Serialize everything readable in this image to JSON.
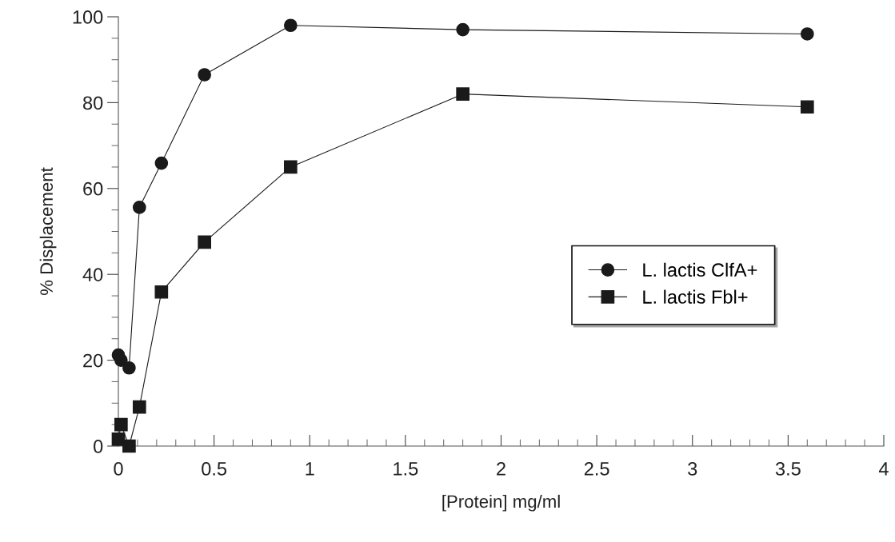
{
  "chart_data": {
    "type": "line",
    "xlabel": "[Protein] mg/ml",
    "ylabel": "% Displacement",
    "xlim": [
      0,
      4
    ],
    "xticks": [
      0,
      0.5,
      1,
      1.5,
      2,
      2.5,
      3,
      3.5,
      4
    ],
    "ylim": [
      0,
      100
    ],
    "yticks": [
      0,
      20,
      40,
      60,
      80,
      100
    ],
    "grid": false,
    "legend": "center",
    "line_style": "solid",
    "x": [
      0,
      0.014,
      0.056,
      0.11,
      0.225,
      0.45,
      0.9,
      1.8,
      3.6
    ],
    "series": [
      {
        "name": "L. lactis ClfA+",
        "color": "#1a1a1a",
        "marker": "circle",
        "values": [
          21.2,
          20,
          18.2,
          55.6,
          65.9,
          86.5,
          98,
          97,
          96
        ]
      },
      {
        "name": "L. lactis Fbl+",
        "color": "#1a1a1a",
        "marker": "square",
        "values": [
          1.6,
          5,
          0,
          9.1,
          35.9,
          47.5,
          65,
          82,
          79
        ]
      }
    ]
  }
}
